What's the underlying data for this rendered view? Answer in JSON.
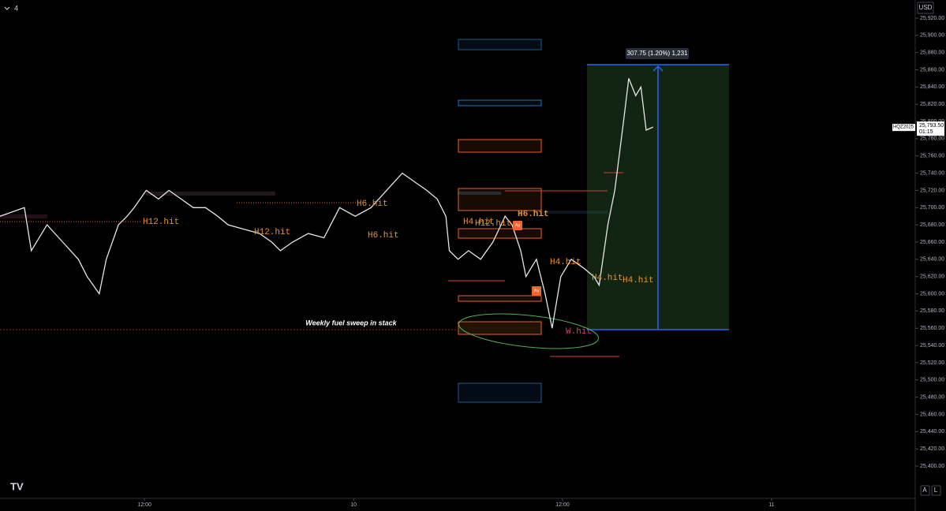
{
  "chart_data": {
    "type": "line",
    "interval": "4",
    "currency": "USD",
    "symbol": "HQZ2025",
    "last_price_label": "25,793.50",
    "countdown": "01:15",
    "measure_label": "307.75 (1.20%) 1,231",
    "buttons": [
      "A",
      "L"
    ],
    "annotations": [
      "H12.hit",
      "H12.hit",
      "H6.hit",
      "H6.hit",
      "H4.hit",
      "H12.hit",
      "H6.hit",
      "H4.hit",
      "H4.hit",
      "H4.hit",
      "W.hit",
      "Weekly fuel sweep in stack"
    ],
    "markers": [
      "Av",
      "Av"
    ],
    "color": "#e6e6e6",
    "x": [
      3.7,
      5.1,
      5.5,
      6.4,
      7.3,
      8.2,
      8.7,
      9.4,
      9.8,
      10.5,
      11.0,
      11.4,
      12.1,
      12.8,
      13.4,
      14.1,
      14.8,
      15.5,
      16.2,
      16.8,
      17.7,
      18.6,
      19.3,
      19.8,
      20.5,
      21.4,
      22.3,
      23.2,
      24.1,
      25.0,
      25.9,
      26.8,
      27.5,
      28.2,
      28.8,
      29.3,
      29.5,
      30.0,
      30.6,
      31.3,
      32.0,
      32.7,
      33.1,
      33.6,
      33.9,
      34.5,
      35.0,
      35.4,
      35.9,
      36.5,
      37.2,
      37.8,
      38.1,
      38.6,
      39.0,
      39.5,
      39.8,
      40.2,
      40.5,
      40.8,
      41.2
    ],
    "values": [
      25690,
      25700,
      25650,
      25680,
      25660,
      25640,
      25620,
      25600,
      25640,
      25680,
      25690,
      25700,
      25720,
      25710,
      25720,
      25710,
      25700,
      25700,
      25690,
      25680,
      25675,
      25670,
      25660,
      25650,
      25660,
      25670,
      25665,
      25700,
      25690,
      25700,
      25720,
      25740,
      25730,
      25720,
      25710,
      25690,
      25650,
      25640,
      25650,
      25640,
      25660,
      25690,
      25680,
      25650,
      25620,
      25640,
      25600,
      25560,
      25620,
      25640,
      25630,
      25620,
      25610,
      25680,
      25720,
      25800,
      25850,
      25830,
      25840,
      25790,
      25793.5
    ],
    "xlim": [
      3.7,
      56.25
    ],
    "xticks": [
      {
        "value": 12,
        "label": "12:00"
      },
      {
        "value": 24,
        "label": "10"
      },
      {
        "value": 36,
        "label": "12:00"
      },
      {
        "value": 48,
        "label": "11"
      }
    ],
    "ylim": [
      25362.5,
      25941
    ],
    "yticks": [
      {
        "value": 25920,
        "label": "25,920.00"
      },
      {
        "value": 25900,
        "label": "25,900.00"
      },
      {
        "value": 25880,
        "label": "25,880.00"
      },
      {
        "value": 25860,
        "label": "25,860.00"
      },
      {
        "value": 25840,
        "label": "25,840.00"
      },
      {
        "value": 25820,
        "label": "25,820.00"
      },
      {
        "value": 25800,
        "label": "25,800.00"
      },
      {
        "value": 25780,
        "label": "25,780.00"
      },
      {
        "value": 25760,
        "label": "25,760.00"
      },
      {
        "value": 25740,
        "label": "25,740.00"
      },
      {
        "value": 25720,
        "label": "25,720.00"
      },
      {
        "value": 25700,
        "label": "25,700.00"
      },
      {
        "value": 25680,
        "label": "25,680.00"
      },
      {
        "value": 25660,
        "label": "25,660.00"
      },
      {
        "value": 25640,
        "label": "25,640.00"
      },
      {
        "value": 25620,
        "label": "25,620.00"
      },
      {
        "value": 25600,
        "label": "25,600.00"
      },
      {
        "value": 25580,
        "label": "25,580.00"
      },
      {
        "value": 25560,
        "label": "25,560.00"
      },
      {
        "value": 25540,
        "label": "25,540.00"
      },
      {
        "value": 25520,
        "label": "25,520.00"
      },
      {
        "value": 25500,
        "label": "25,500.00"
      },
      {
        "value": 25480,
        "label": "25,480.00"
      },
      {
        "value": 25460,
        "label": "25,460.00"
      },
      {
        "value": 25440,
        "label": "25,440.00"
      },
      {
        "value": 25420,
        "label": "25,420.00"
      },
      {
        "value": 25400,
        "label": "25,400.00"
      }
    ]
  }
}
